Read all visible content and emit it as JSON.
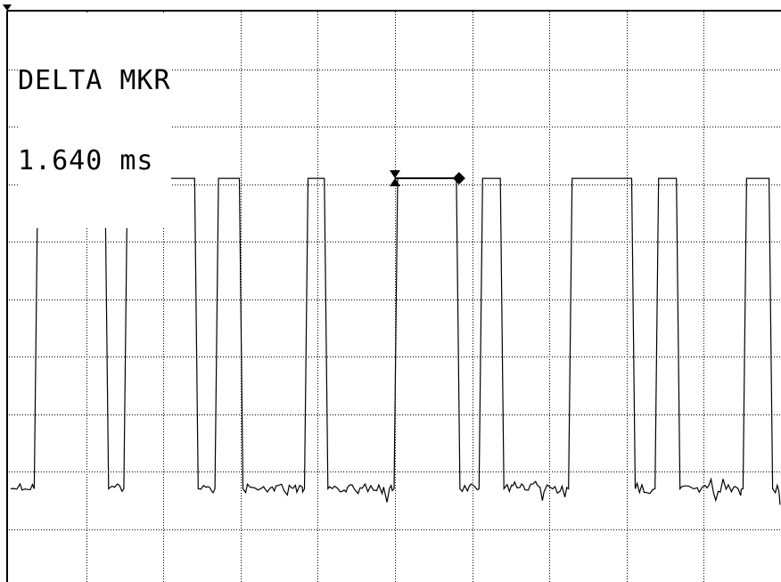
{
  "marker_panel": {
    "title": "DELTA MKR",
    "value": "1.640 ms"
  },
  "chart_data": {
    "type": "line",
    "title": "",
    "xlabel": "",
    "ylabel": "",
    "grid": true,
    "divisions": {
      "x": 10,
      "y": 10
    },
    "xlim": [
      0,
      10
    ],
    "ylim": [
      0,
      10
    ],
    "levels": {
      "high": 7.1,
      "low": 1.7
    },
    "series": [
      {
        "pulses": [
          {
            "rise": 0.34,
            "fall": 1.28
          },
          {
            "rise": 1.5,
            "fall": 2.44
          },
          {
            "rise": 2.68,
            "fall": 3.02
          },
          {
            "rise": 3.84,
            "fall": 4.12
          },
          {
            "rise": 5.0,
            "fall": 5.83
          },
          {
            "rise": 6.1,
            "fall": 6.4
          },
          {
            "rise": 7.26,
            "fall": 8.1
          },
          {
            "rise": 8.38,
            "fall": 8.68
          },
          {
            "rise": 9.52,
            "fall": 9.88
          }
        ]
      }
    ],
    "markers": {
      "reference": {
        "x": 5.0,
        "y": 7.1,
        "shape": "hourglass"
      },
      "delta": {
        "x": 5.83,
        "y": 7.1,
        "shape": "diamond"
      }
    }
  }
}
